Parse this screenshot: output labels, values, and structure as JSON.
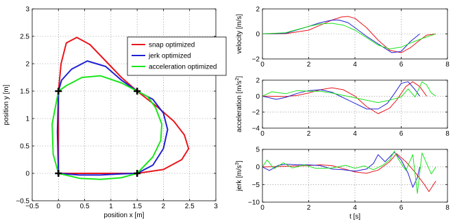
{
  "chart_data": [
    {
      "type": "line",
      "xlabel": "position x [m]",
      "ylabel": "position y [m]",
      "xlim": [
        -0.5,
        3
      ],
      "ylim": [
        -0.5,
        3
      ],
      "xticks": [
        "-0.5",
        "0",
        "0.5",
        "1",
        "1.5",
        "2",
        "2.5",
        "3"
      ],
      "yticks": [
        "-0.5",
        "0",
        "0.5",
        "1",
        "1.5",
        "2",
        "2.5",
        "3"
      ],
      "grid": true,
      "legend_position": "top-right",
      "waypoints": [
        [
          0,
          0
        ],
        [
          1.5,
          0
        ],
        [
          1.5,
          1.5
        ],
        [
          0,
          1.5
        ]
      ],
      "series": [
        {
          "name": "snap optimized",
          "color": "#e8141b",
          "x": [
            0,
            0.5,
            1.0,
            1.5,
            2.0,
            2.35,
            2.48,
            2.4,
            2.2,
            1.9,
            1.5,
            1.2,
            0.9,
            0.6,
            0.35,
            0.15,
            0.05,
            0.0,
            0.0,
            0.0,
            0.0
          ],
          "y": [
            0,
            0.0,
            0.0,
            0.0,
            0.07,
            0.25,
            0.45,
            0.7,
            0.95,
            1.2,
            1.5,
            1.75,
            2.05,
            2.35,
            2.48,
            2.38,
            2.0,
            1.5,
            1.0,
            0.5,
            0
          ]
        },
        {
          "name": "jerk optimized",
          "color": "#1f1fd4",
          "x": [
            0,
            0.4,
            0.8,
            1.2,
            1.5,
            1.8,
            2.0,
            2.08,
            2.0,
            1.8,
            1.5,
            1.2,
            0.9,
            0.55,
            0.25,
            0.06,
            0.0,
            -0.02,
            0.0
          ],
          "y": [
            0,
            -0.03,
            -0.03,
            -0.01,
            0.0,
            0.15,
            0.45,
            0.8,
            1.1,
            1.35,
            1.5,
            1.7,
            1.95,
            2.05,
            1.9,
            1.7,
            1.5,
            0.75,
            0
          ]
        },
        {
          "name": "acceleration optimized",
          "color": "#19e619",
          "x": [
            0,
            0.4,
            0.8,
            1.2,
            1.5,
            1.8,
            1.95,
            1.97,
            1.85,
            1.7,
            1.5,
            1.2,
            0.8,
            0.45,
            0.15,
            0.0,
            -0.12,
            -0.1,
            0.0
          ],
          "y": [
            0,
            -0.09,
            -0.11,
            -0.08,
            0.0,
            0.3,
            0.6,
            0.9,
            1.2,
            1.4,
            1.5,
            1.65,
            1.78,
            1.75,
            1.6,
            1.5,
            0.9,
            0.35,
            0
          ]
        }
      ]
    },
    {
      "type": "line",
      "xlabel": "",
      "ylabel": "velocity [m/s]",
      "xlim": [
        0,
        8
      ],
      "ylim": [
        -2,
        2
      ],
      "xticks": [
        "0",
        "2",
        "4",
        "6",
        "8"
      ],
      "yticks": [
        "-2",
        "0",
        "2"
      ],
      "grid": true,
      "series": [
        {
          "color": "#e8141b",
          "x": [
            0,
            1,
            2,
            2.5,
            3,
            3.4,
            3.7,
            4,
            4.5,
            5,
            5.5,
            6,
            6.4,
            6.8,
            7.1,
            7.5
          ],
          "y": [
            0,
            0.02,
            0.3,
            0.7,
            1.1,
            1.35,
            1.4,
            1.25,
            0.5,
            -0.5,
            -1.3,
            -1.5,
            -1.1,
            -0.5,
            -0.1,
            0
          ]
        },
        {
          "color": "#1f1fd4",
          "x": [
            0,
            1,
            2,
            2.5,
            3,
            3.3,
            3.7,
            4,
            4.5,
            5,
            5.6,
            6,
            6.4,
            6.8
          ],
          "y": [
            0,
            0.05,
            0.6,
            0.9,
            1.1,
            1.12,
            0.9,
            0.5,
            -0.2,
            -0.8,
            -1.5,
            -1.4,
            -0.6,
            0
          ]
        },
        {
          "color": "#19e619",
          "x": [
            0,
            1,
            1.5,
            2,
            2.5,
            3,
            3.5,
            4,
            4.5,
            5,
            5.5,
            6,
            6.5,
            7,
            7.5
          ],
          "y": [
            0,
            0.1,
            0.35,
            0.6,
            0.8,
            0.85,
            0.7,
            0.3,
            -0.3,
            -0.9,
            -1.2,
            -1.05,
            -0.65,
            -0.3,
            0
          ]
        }
      ]
    },
    {
      "type": "line",
      "xlabel": "",
      "ylabel": "acceleration [m/s^2]",
      "ylabel_base": "acceleration [m/s",
      "ylabel_sup": "2",
      "ylabel_end": "]",
      "xlim": [
        0,
        8
      ],
      "ylim": [
        -4,
        2
      ],
      "xticks": [
        "0",
        "2",
        "4",
        "6",
        "8"
      ],
      "yticks": [
        "-4",
        "-2",
        "0",
        "2"
      ],
      "grid": true,
      "series": [
        {
          "color": "#e8141b",
          "x": [
            0,
            1,
            1.5,
            2,
            2.5,
            3,
            3.5,
            4,
            4.5,
            5,
            5.5,
            5.8,
            6.2,
            6.5,
            6.8,
            7.1
          ],
          "y": [
            0,
            -0.05,
            0.1,
            0.4,
            0.8,
            1.05,
            0.8,
            0.0,
            -1.3,
            -2.2,
            -1.5,
            -0.5,
            1.2,
            1.8,
            1.2,
            0.0
          ]
        },
        {
          "color": "#1f1fd4",
          "x": [
            0,
            0.6,
            1,
            1.5,
            2,
            2.5,
            3,
            3.5,
            4,
            4.5,
            5,
            5.4,
            5.7,
            6,
            6.3,
            6.6,
            6.8
          ],
          "y": [
            0,
            -0.4,
            -0.15,
            0.35,
            0.7,
            0.8,
            0.5,
            -0.2,
            -0.9,
            -1.6,
            -1.6,
            -0.9,
            0.3,
            1.6,
            1.8,
            0.8,
            0.0
          ]
        },
        {
          "color": "#19e619",
          "x": [
            0,
            0.4,
            1,
            1.5,
            2,
            2.5,
            3,
            3.5,
            4,
            4.5,
            5,
            5.5,
            6,
            6.3,
            6.6,
            6.9,
            7.1,
            7.3,
            7.5
          ],
          "y": [
            0,
            0.55,
            0.3,
            0.7,
            0.6,
            0.6,
            0.4,
            0.1,
            -0.2,
            -0.5,
            -0.8,
            -0.5,
            -0.1,
            0.9,
            -0.1,
            1.8,
            1.4,
            0.4,
            0.0
          ]
        }
      ]
    },
    {
      "type": "line",
      "xlabel": "t [s]",
      "ylabel": "jerk [m/s^3]",
      "ylabel_base": "jerk [m/s",
      "ylabel_sup": "3",
      "ylabel_end": "]",
      "xlim": [
        0,
        8
      ],
      "ylim": [
        -10,
        5
      ],
      "xticks": [
        "0",
        "2",
        "4",
        "6",
        "8"
      ],
      "yticks": [
        "-10",
        "-5",
        "0",
        "5"
      ],
      "grid": true,
      "series": [
        {
          "color": "#e8141b",
          "x": [
            0,
            1,
            2,
            2.5,
            3,
            3.5,
            4,
            4.5,
            5,
            5.5,
            5.8,
            6.2,
            6.6,
            7.0,
            7.2,
            7.5
          ],
          "y": [
            0,
            0.2,
            0.4,
            0.6,
            0.4,
            -0.5,
            -1.4,
            -1.8,
            -0.9,
            1.5,
            3.8,
            1.5,
            -1.5,
            -5.0,
            -7.0,
            -4.0
          ]
        },
        {
          "color": "#1f1fd4",
          "x": [
            0,
            0.3,
            0.7,
            1,
            1.5,
            2,
            2.5,
            3,
            3.5,
            4,
            4.5,
            4.8,
            5.0,
            5.3,
            5.7,
            6.0,
            6.3,
            6.5,
            6.7,
            6.8
          ],
          "y": [
            0,
            -1.0,
            0.5,
            0.8,
            0.6,
            0.6,
            0.4,
            -0.6,
            -0.8,
            -1.2,
            -0.6,
            1.0,
            3.5,
            1.5,
            4.2,
            2.0,
            -1.8,
            -5.8,
            -3.0,
            0.0
          ]
        },
        {
          "color": "#19e619",
          "x": [
            0,
            0.2,
            0.5,
            0.9,
            1.3,
            1.8,
            2.3,
            3.0,
            3.6,
            4.0,
            4.4,
            4.8,
            5.2,
            5.5,
            5.7,
            5.9,
            6.2,
            6.5,
            6.7,
            6.9,
            7.1,
            7.3,
            7.5
          ],
          "y": [
            0,
            2.0,
            -0.5,
            1.2,
            -0.3,
            0.6,
            -0.4,
            -0.3,
            0.5,
            -0.4,
            0.3,
            -0.8,
            0.5,
            2.0,
            4.5,
            2.0,
            -1.0,
            3.5,
            -7.5,
            4.0,
            1.0,
            -2.0,
            0.0
          ]
        }
      ]
    }
  ]
}
